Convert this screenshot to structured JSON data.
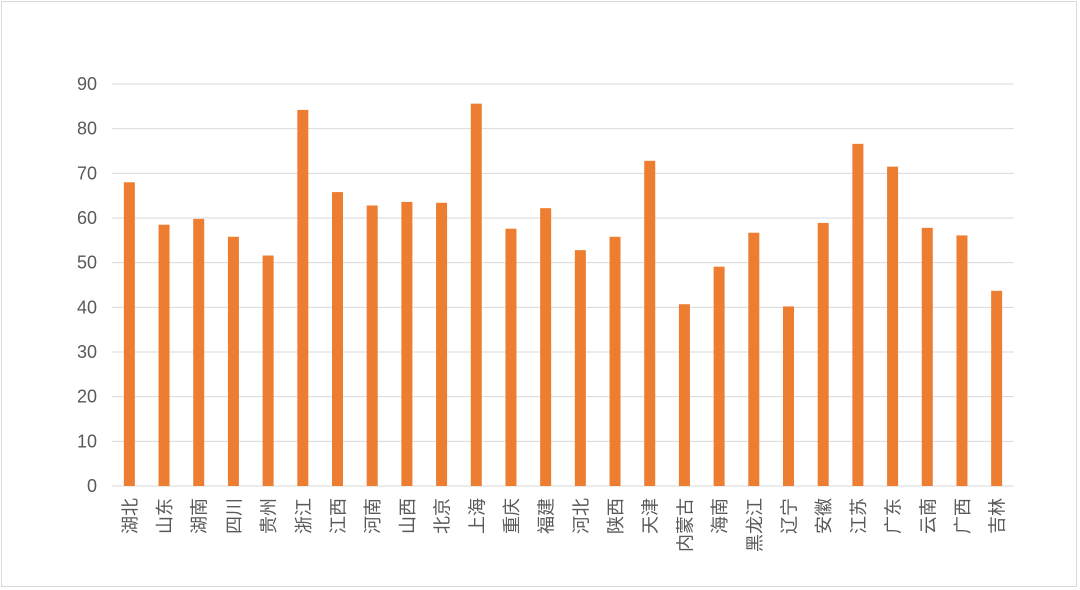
{
  "chart_data": {
    "type": "bar",
    "title": "",
    "xlabel": "",
    "ylabel": "",
    "ylim": [
      0,
      90
    ],
    "yticks": [
      0,
      10,
      20,
      30,
      40,
      50,
      60,
      70,
      80,
      90
    ],
    "grid": true,
    "legend": "none",
    "bar_color": "#ED7D31",
    "grid_color": "#D9D9D9",
    "categories": [
      "湖北",
      "山东",
      "湖南",
      "四川",
      "贵州",
      "浙江",
      "江西",
      "河南",
      "山西",
      "北京",
      "上海",
      "重庆",
      "福建",
      "河北",
      "陕西",
      "天津",
      "内蒙古",
      "海南",
      "黑龙江",
      "辽宁",
      "安徽",
      "江苏",
      "广东",
      "云南",
      "广西",
      "吉林"
    ],
    "values": [
      68,
      58.5,
      59.8,
      55.8,
      51.6,
      84.2,
      65.8,
      62.8,
      63.6,
      63.4,
      85.6,
      57.6,
      62.2,
      52.8,
      55.8,
      72.8,
      40.7,
      49.1,
      56.7,
      40.2,
      58.9,
      76.6,
      71.5,
      57.8,
      56.1,
      43.7
    ]
  }
}
